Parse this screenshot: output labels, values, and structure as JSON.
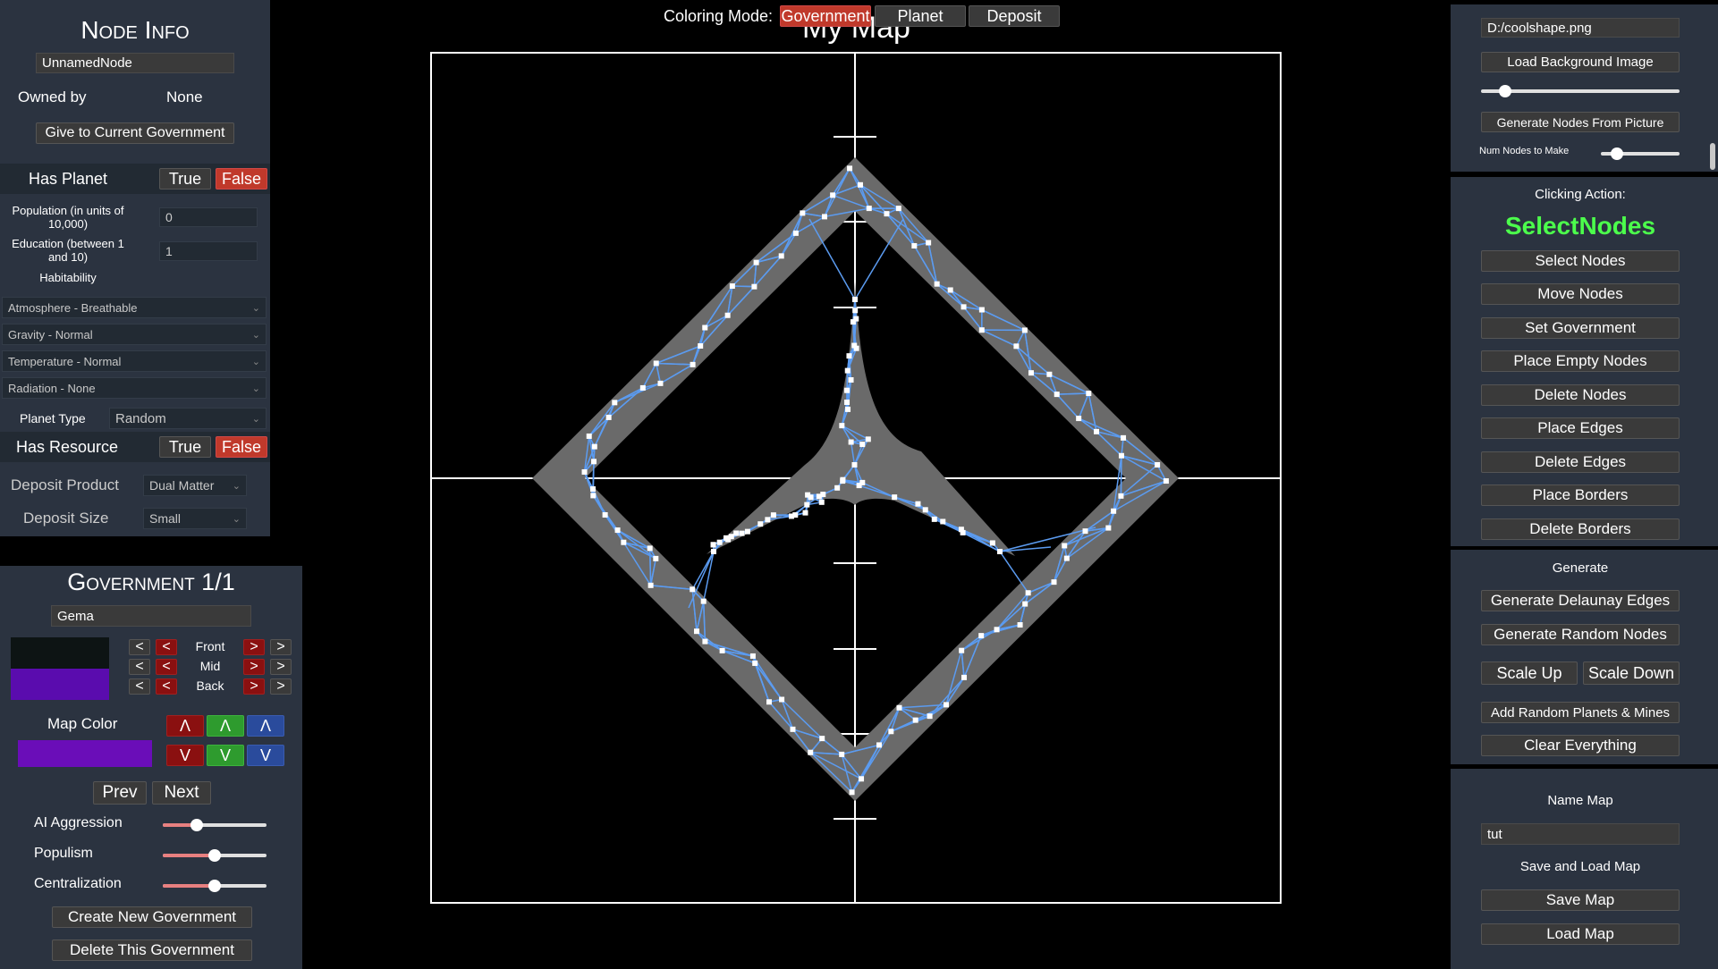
{
  "top": {
    "coloring_label": "Coloring Mode:",
    "modes": [
      "Government",
      "Planet",
      "Deposit"
    ],
    "map_title": "My Map"
  },
  "node_info": {
    "title": "Node Info",
    "name_value": "UnnamedNode",
    "owned_by_label": "Owned by",
    "owned_by_value": "None",
    "give_button": "Give to Current Government",
    "has_planet_label": "Has Planet",
    "true_label": "True",
    "false_label": "False",
    "population_label": "Population (in units of 10,000)",
    "population_value": "0",
    "education_label": "Education (between 1 and 10)",
    "education_value": "1",
    "habitability_label": "Habitability",
    "atmosphere": "Atmosphere - Breathable",
    "gravity": "Gravity - Normal",
    "temperature": "Temperature - Normal",
    "radiation": "Radiation - None",
    "planet_type_label": "Planet Type",
    "planet_type_value": "Random",
    "has_resource_label": "Has Resource",
    "deposit_product_label": "Deposit Product",
    "deposit_product_value": "Dual Matter",
    "deposit_size_label": "Deposit Size",
    "deposit_size_value": "Small"
  },
  "government": {
    "title": "Government 1/1",
    "name_value": "Gema",
    "layer_labels": [
      "Front",
      "Mid",
      "Back"
    ],
    "left_arrow": "<",
    "right_arrow": ">",
    "front_color": "#0d1414",
    "back_color": "#5a0cae",
    "map_color_label": "Map Color",
    "map_color": "#6a0db8",
    "up_arrow": "Λ",
    "down_arrow": "V",
    "prev_label": "Prev",
    "next_label": "Next",
    "ai_aggression_label": "AI Aggression",
    "ai_aggression_value": 0.33,
    "populism_label": "Populism",
    "populism_value": 0.5,
    "centralization_label": "Centralization",
    "centralization_value": 0.5,
    "create_button": "Create New Government",
    "delete_button": "Delete This Government"
  },
  "right": {
    "bg_path": "D:/coolshape.png",
    "load_bg_button": "Load Background Image",
    "bg_slider_value": 0.12,
    "gen_from_picture_button": "Generate Nodes From Picture",
    "num_nodes_label": "Num Nodes to Make",
    "num_nodes_value": 0.2,
    "clicking_action_label": "Clicking Action:",
    "clicking_action_value": "SelectNodes",
    "actions": [
      "Select Nodes",
      "Move Nodes",
      "Set Government",
      "Place Empty Nodes",
      "Delete Nodes",
      "Place Edges",
      "Delete Edges",
      "Place Borders",
      "Delete Borders"
    ],
    "generate_label": "Generate",
    "gen_delaunay": "Generate Delaunay Edges",
    "gen_random": "Generate Random Nodes",
    "scale_up": "Scale Up",
    "scale_down": "Scale Down",
    "add_random": "Add Random Planets & Mines",
    "clear_everything": "Clear Everything",
    "name_map_label": "Name Map",
    "map_name_value": "tut",
    "save_load_label": "Save and Load Map",
    "save_map": "Save Map",
    "load_map": "Load Map"
  },
  "colors": {
    "panel": "#2b3340",
    "active_red": "#c0392b",
    "accent_green": "#4cff4c",
    "edge_blue": "#5b9bf0"
  }
}
